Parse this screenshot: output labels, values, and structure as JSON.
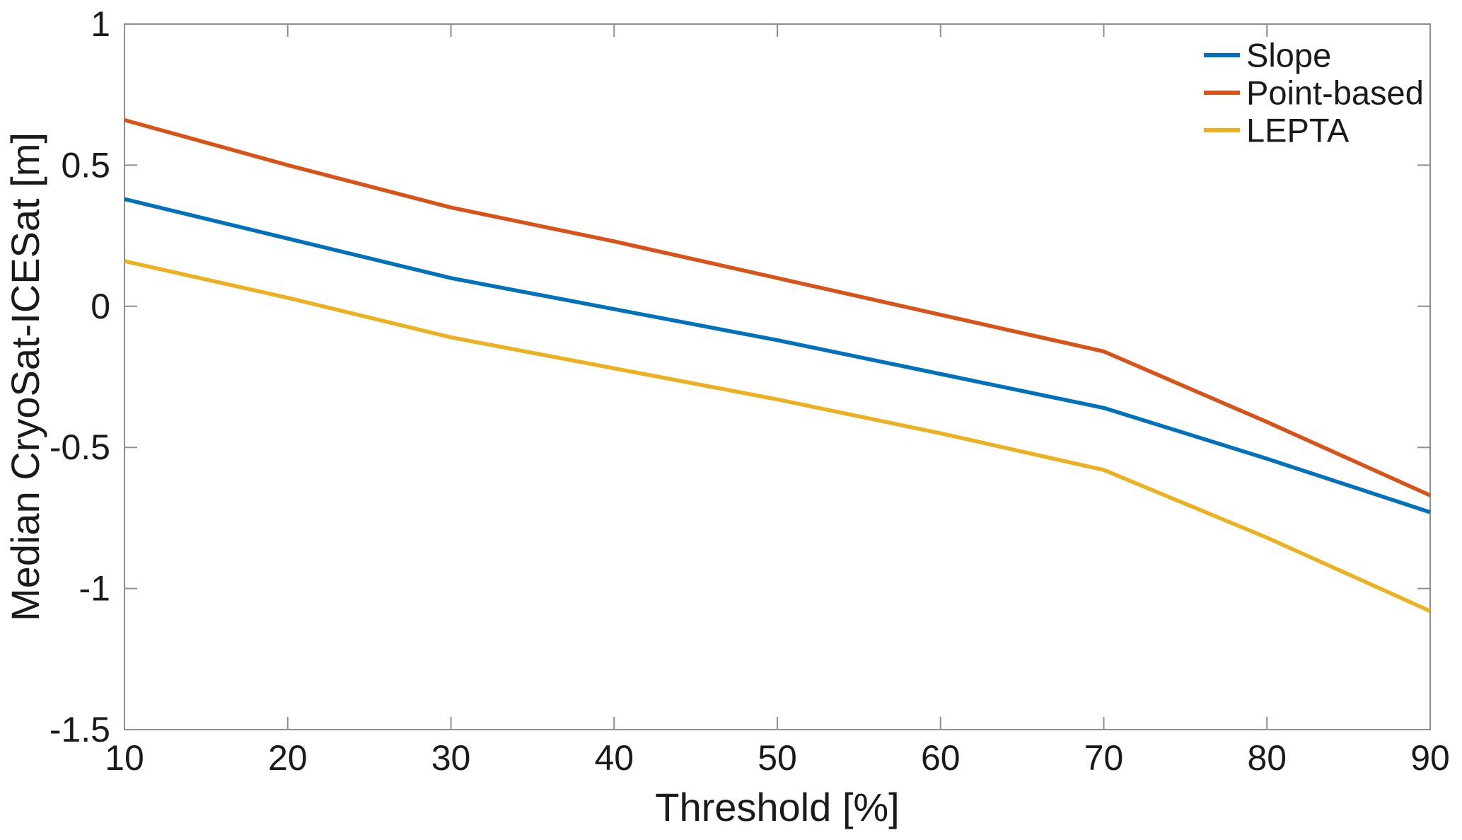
{
  "chart_data": {
    "type": "line",
    "x": [
      10,
      20,
      30,
      40,
      50,
      60,
      70,
      80,
      90
    ],
    "series": [
      {
        "name": "Slope",
        "color": "#0072BD",
        "values": [
          0.38,
          0.24,
          0.1,
          -0.01,
          -0.12,
          -0.24,
          -0.36,
          -0.54,
          -0.73
        ]
      },
      {
        "name": "Point-based",
        "color": "#D95319",
        "values": [
          0.66,
          0.5,
          0.35,
          0.23,
          0.1,
          -0.03,
          -0.16,
          -0.41,
          -0.67
        ]
      },
      {
        "name": "LEPTA",
        "color": "#EDB120",
        "values": [
          0.16,
          0.03,
          -0.11,
          -0.22,
          -0.33,
          -0.45,
          -0.58,
          -0.82,
          -1.08
        ]
      }
    ],
    "title": "",
    "xlabel": "Threshold [%]",
    "ylabel": "Median CryoSat-ICESat [m]",
    "xlim": [
      10,
      90
    ],
    "ylim": [
      -1.5,
      1
    ],
    "xticks": [
      10,
      20,
      30,
      40,
      50,
      60,
      70,
      80,
      90
    ],
    "xtick_labels": [
      "10",
      "20",
      "30",
      "40",
      "50",
      "60",
      "70",
      "80",
      "90"
    ],
    "yticks": [
      -1.5,
      -1,
      -0.5,
      0,
      0.5,
      1
    ],
    "ytick_labels": [
      "-1.5",
      "-1",
      "-0.5",
      "0",
      "0.5",
      "1"
    ],
    "grid": false,
    "legend_position": "top-right-inside",
    "legend_box": false,
    "axis_color": "#8e8e8e",
    "text_color": "#1a1a1a",
    "background_color": "#ffffff"
  }
}
